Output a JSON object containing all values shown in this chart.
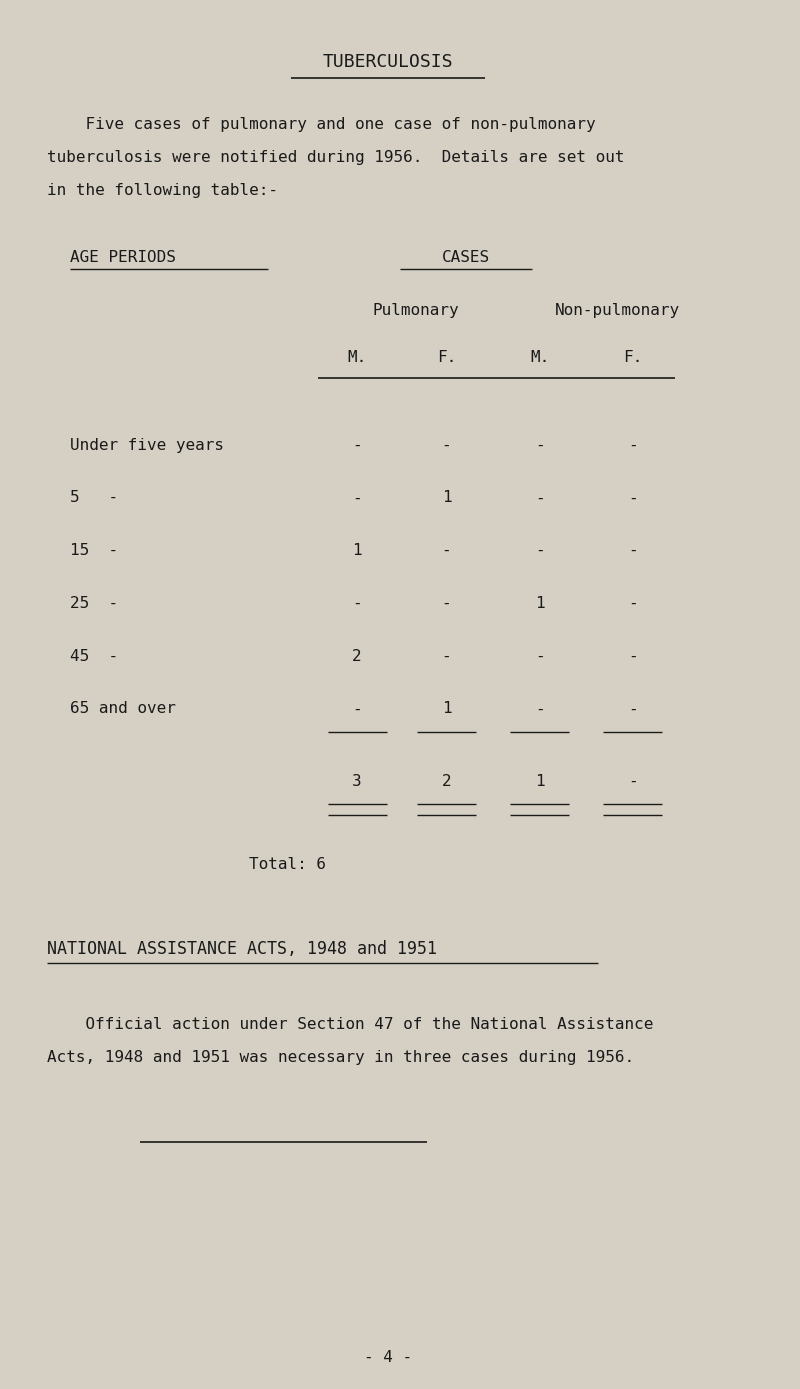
{
  "bg_color": "#d6d0c4",
  "text_color": "#1a1a1a",
  "title": "TUBERCULOSIS",
  "intro_text": [
    "    Five cases of pulmonary and one case of non-pulmonary",
    "tuberculosis were notified during 1956.  Details are set out",
    "in the following table:-"
  ],
  "age_periods_label": "AGE PERIODS",
  "cases_label": "CASES",
  "pulmonary_label": "Pulmonary",
  "non_pulmonary_label": "Non-pulmonary",
  "col_m1": "M.",
  "col_f1": "F.",
  "col_m2": "M.",
  "col_f2": "F.",
  "rows": [
    {
      "age": "Under five years",
      "pm": "-",
      "pf": "-",
      "npm": "-",
      "npf": "-"
    },
    {
      "age": "5   -",
      "pm": "-",
      "pf": "1",
      "npm": "-",
      "npf": "-"
    },
    {
      "age": "15  -",
      "pm": "1",
      "pf": "-",
      "npm": "-",
      "npf": "-"
    },
    {
      "age": "25  -",
      "pm": "-",
      "pf": "-",
      "npm": "1",
      "npf": "-"
    },
    {
      "age": "45  -",
      "pm": "2",
      "pf": "-",
      "npm": "-",
      "npf": "-"
    },
    {
      "age": "65 and over",
      "pm": "-",
      "pf": "1",
      "npm": "-",
      "npf": "-"
    }
  ],
  "total_label": "Total: 6",
  "totals": {
    "pm": "3",
    "pf": "2",
    "npm": "1",
    "npf": "-"
  },
  "section2_title": "NATIONAL ASSISTANCE ACTS, 1948 and 1951",
  "section2_text": [
    "    Official action under Section 47 of the National Assistance",
    "Acts, 1948 and 1951 was necessary in three cases during 1956."
  ],
  "page_number": "- 4 -",
  "font_size": 11.5,
  "title_font_size": 13,
  "section2_title_font_size": 12
}
